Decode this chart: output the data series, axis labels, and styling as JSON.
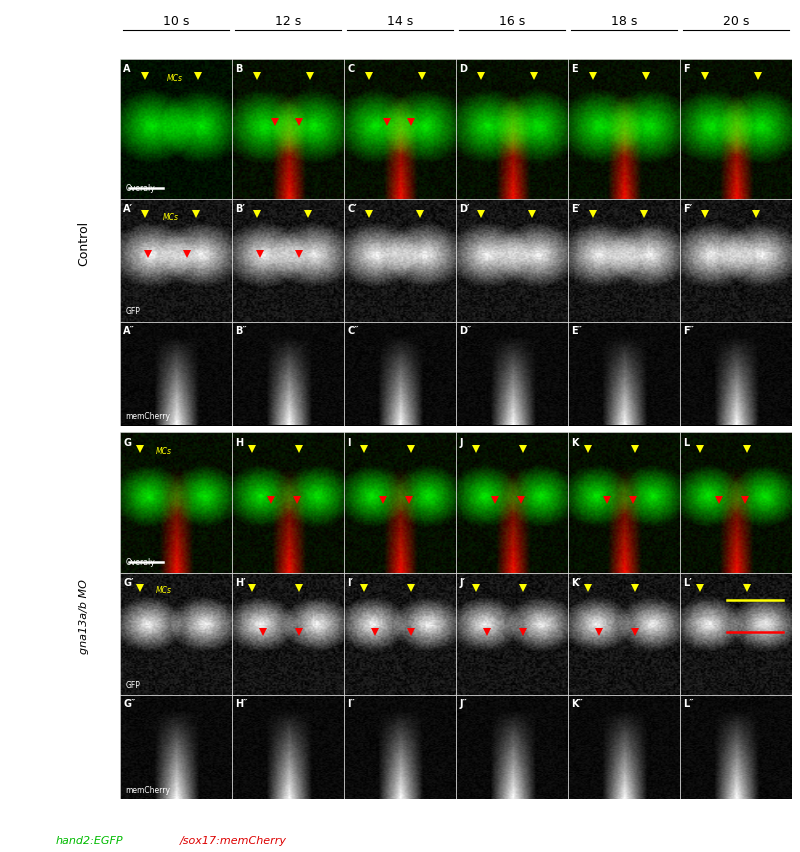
{
  "fig_width": 8.0,
  "fig_height": 8.53,
  "dpi": 100,
  "background_color": "#000000",
  "time_labels": [
    "10 s",
    "12 s",
    "14 s",
    "16 s",
    "18 s",
    "20 s"
  ],
  "panel_labels_row1": [
    "A",
    "B",
    "C",
    "D",
    "E",
    "F"
  ],
  "panel_labels_row2": [
    "A′",
    "B′",
    "C′",
    "D′",
    "E′",
    "F′"
  ],
  "panel_labels_row3": [
    "A″",
    "B″",
    "C″",
    "D″",
    "E″",
    "F″"
  ],
  "panel_labels_row4": [
    "G",
    "H",
    "I",
    "J",
    "K",
    "L"
  ],
  "panel_labels_row5": [
    "G′",
    "H′",
    "I′",
    "J′",
    "K′",
    "L′"
  ],
  "panel_labels_row6": [
    "G″",
    "H″",
    "I″",
    "J″",
    "K″",
    "L″"
  ],
  "row_labels": [
    "Control",
    "gna13a/b MO"
  ],
  "overlay_label": "Overaly",
  "gfp_label": "GFP",
  "cherry_label": "memCherry",
  "mcs_label": "MCs",
  "bottom_label_green": "hand2:EGFP",
  "bottom_label_red": "/sox17:memCherry",
  "panel_label_color": "#ffffff",
  "mcs_color": "#ffff00",
  "yellow_arrowhead_color": "#ffff00",
  "red_arrowhead_color": "#ff0000"
}
